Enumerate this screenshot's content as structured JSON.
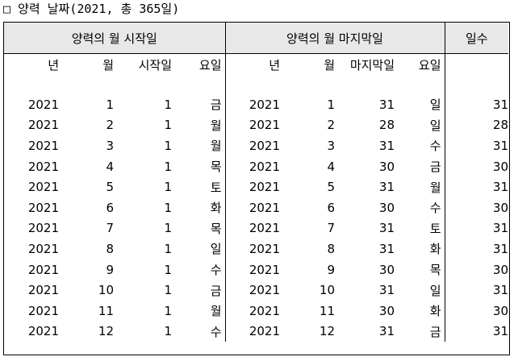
{
  "title": "□ 양력 날짜(2021, 총 365일)",
  "headers": {
    "start": "양력의 월 시작일",
    "end": "양력의 월 마지막일",
    "days": "일수"
  },
  "subheaders": {
    "year": "년",
    "month": "월",
    "start_day": "시작일",
    "weekday": "요일",
    "year2": "년",
    "month2": "월",
    "end_day": "마지막일",
    "weekday2": "요일"
  },
  "rows": [
    {
      "year": "2021",
      "month": "1",
      "start": "1",
      "start_wd": "금",
      "year2": "2021",
      "month2": "1",
      "end": "31",
      "end_wd": "일",
      "days": "31"
    },
    {
      "year": "2021",
      "month": "2",
      "start": "1",
      "start_wd": "월",
      "year2": "2021",
      "month2": "2",
      "end": "28",
      "end_wd": "일",
      "days": "28"
    },
    {
      "year": "2021",
      "month": "3",
      "start": "1",
      "start_wd": "월",
      "year2": "2021",
      "month2": "3",
      "end": "31",
      "end_wd": "수",
      "days": "31"
    },
    {
      "year": "2021",
      "month": "4",
      "start": "1",
      "start_wd": "목",
      "year2": "2021",
      "month2": "4",
      "end": "30",
      "end_wd": "금",
      "days": "30"
    },
    {
      "year": "2021",
      "month": "5",
      "start": "1",
      "start_wd": "토",
      "year2": "2021",
      "month2": "5",
      "end": "31",
      "end_wd": "월",
      "days": "31"
    },
    {
      "year": "2021",
      "month": "6",
      "start": "1",
      "start_wd": "화",
      "year2": "2021",
      "month2": "6",
      "end": "30",
      "end_wd": "수",
      "days": "30"
    },
    {
      "year": "2021",
      "month": "7",
      "start": "1",
      "start_wd": "목",
      "year2": "2021",
      "month2": "7",
      "end": "31",
      "end_wd": "토",
      "days": "31"
    },
    {
      "year": "2021",
      "month": "8",
      "start": "1",
      "start_wd": "일",
      "year2": "2021",
      "month2": "8",
      "end": "31",
      "end_wd": "화",
      "days": "31"
    },
    {
      "year": "2021",
      "month": "9",
      "start": "1",
      "start_wd": "수",
      "year2": "2021",
      "month2": "9",
      "end": "30",
      "end_wd": "목",
      "days": "30"
    },
    {
      "year": "2021",
      "month": "10",
      "start": "1",
      "start_wd": "금",
      "year2": "2021",
      "month2": "10",
      "end": "31",
      "end_wd": "일",
      "days": "31"
    },
    {
      "year": "2021",
      "month": "11",
      "start": "1",
      "start_wd": "월",
      "year2": "2021",
      "month2": "11",
      "end": "30",
      "end_wd": "화",
      "days": "30"
    },
    {
      "year": "2021",
      "month": "12",
      "start": "1",
      "start_wd": "수",
      "year2": "2021",
      "month2": "12",
      "end": "31",
      "end_wd": "금",
      "days": "31"
    }
  ]
}
